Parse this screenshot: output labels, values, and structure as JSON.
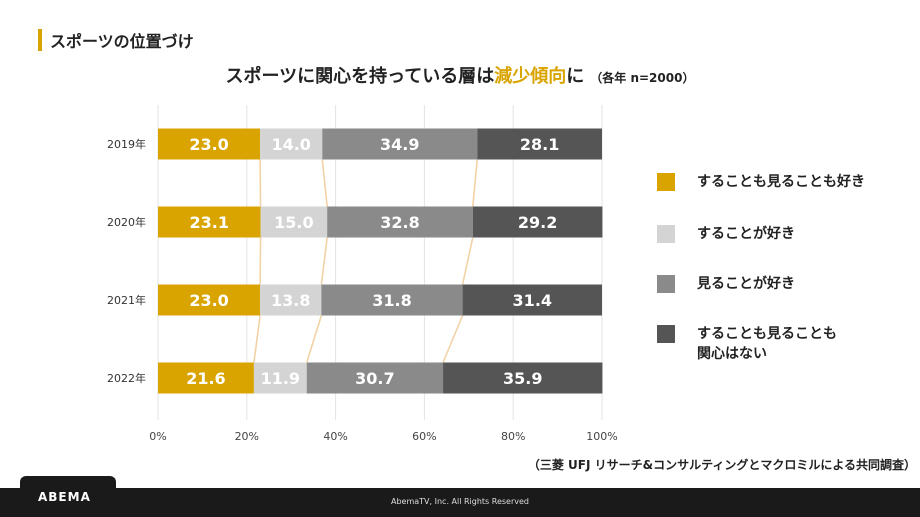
{
  "section_title": "スポーツの位置づけ",
  "headline": {
    "before": "スポーツに関心を持っている層は",
    "highlight": "減少傾向",
    "after": "に",
    "note": "（各年 n=2000）"
  },
  "colors": {
    "accent": "#d9a400",
    "light_gray": "#d4d4d4",
    "mid_gray": "#8a8a8a",
    "dark_gray": "#555555",
    "connector": "#f3d2a6",
    "footer": "#1a1a1a"
  },
  "chart_data": {
    "type": "bar",
    "orientation": "horizontal",
    "stacked": true,
    "percent_stacked": true,
    "categories": [
      "2019年",
      "2020年",
      "2021年",
      "2022年"
    ],
    "series": [
      {
        "name": "することも見ることも好き",
        "color": "#d9a400",
        "values": [
          23.0,
          23.1,
          23.0,
          21.6
        ]
      },
      {
        "name": "することが好き",
        "color": "#d4d4d4",
        "values": [
          14.0,
          15.0,
          13.8,
          11.9
        ]
      },
      {
        "name": "見ることが好き",
        "color": "#8a8a8a",
        "values": [
          34.9,
          32.8,
          31.8,
          30.7
        ]
      },
      {
        "name": "することも見ることも関心はない",
        "color": "#555555",
        "values": [
          28.1,
          29.2,
          31.4,
          35.9
        ]
      }
    ],
    "data_labels": [
      [
        "23.0",
        "14.0",
        "34.9",
        "28.1"
      ],
      [
        "23.1",
        "15.0",
        "32.8",
        "29.2"
      ],
      [
        "23.0",
        "13.8",
        "31.8",
        "31.4"
      ],
      [
        "21.6",
        "11.9",
        "30.7",
        "35.9"
      ]
    ],
    "x_ticks": [
      "0%",
      "20%",
      "40%",
      "60%",
      "80%",
      "100%"
    ],
    "xlim": [
      0,
      100
    ],
    "grid": true,
    "legend_position": "right"
  },
  "legend": [
    {
      "label": "することも見ることも好き"
    },
    {
      "label": "することが好き"
    },
    {
      "label": "見ることが好き"
    },
    {
      "label": "することも見ることも\n関心はない"
    }
  ],
  "source": "（三菱 UFJ リサーチ&コンサルティングとマクロミルによる共同調査）",
  "footer": {
    "logo": "ABEMA",
    "copyright": "AbemaTV, Inc. All Rights Reserved"
  }
}
